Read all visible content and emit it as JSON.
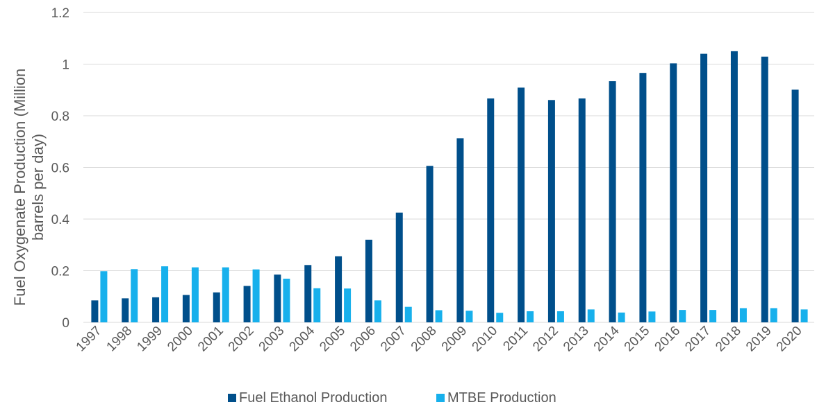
{
  "chart_data": {
    "type": "bar",
    "title": "",
    "xlabel": "",
    "ylabel_line1": "Fuel Oxygenate Production (Million",
    "ylabel_line2": "barrels per day)",
    "ylim": [
      0,
      1.2
    ],
    "yticks": [
      "0",
      "0.2",
      "0.4",
      "0.6",
      "0.8",
      "1",
      "1.2"
    ],
    "grid": true,
    "legend_position": "bottom",
    "categories": [
      "1997",
      "1998",
      "1999",
      "2000",
      "2001",
      "2002",
      "2003",
      "2004",
      "2005",
      "2006",
      "2007",
      "2008",
      "2009",
      "2010",
      "2011",
      "2012",
      "2013",
      "2014",
      "2015",
      "2016",
      "2017",
      "2018",
      "2019",
      "2020"
    ],
    "series": [
      {
        "name": "Fuel Ethanol Production",
        "color": "#004F8B",
        "values": [
          0.085,
          0.093,
          0.097,
          0.106,
          0.116,
          0.141,
          0.185,
          0.222,
          0.256,
          0.32,
          0.425,
          0.606,
          0.713,
          0.867,
          0.909,
          0.861,
          0.867,
          0.934,
          0.966,
          1.003,
          1.04,
          1.05,
          1.029,
          0.901
        ]
      },
      {
        "name": "MTBE Production",
        "color": "#17B0EC",
        "values": [
          0.198,
          0.206,
          0.217,
          0.213,
          0.213,
          0.205,
          0.169,
          0.132,
          0.131,
          0.085,
          0.06,
          0.047,
          0.045,
          0.037,
          0.043,
          0.043,
          0.05,
          0.038,
          0.042,
          0.048,
          0.048,
          0.055,
          0.055,
          0.05
        ]
      }
    ]
  }
}
